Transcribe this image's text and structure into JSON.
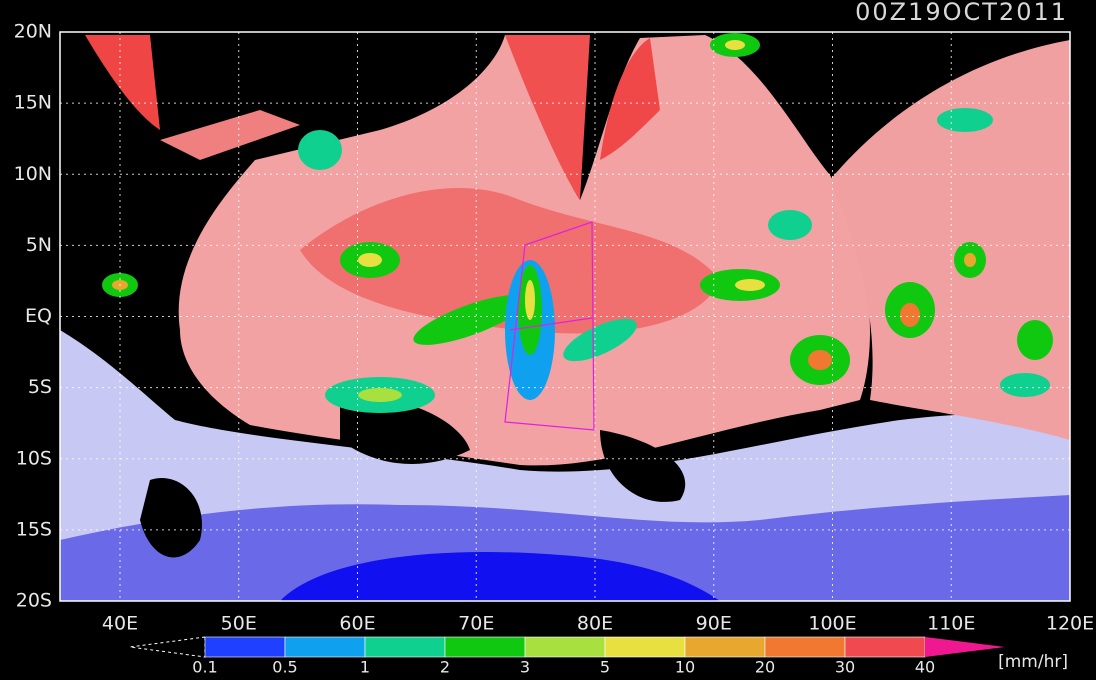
{
  "title": "00Z19OCT2011",
  "lat_labels": [
    "20N",
    "15N",
    "10N",
    "5N",
    "EQ",
    "5S",
    "10S",
    "15S",
    "20S"
  ],
  "lon_labels": [
    "40E",
    "50E",
    "60E",
    "70E",
    "80E",
    "90E",
    "100E",
    "110E",
    "120E"
  ],
  "colorbar": {
    "labels": [
      "0.1",
      "0.5",
      "1",
      "2",
      "3",
      "5",
      "10",
      "20",
      "30",
      "40"
    ],
    "colors": [
      "#2040ff",
      "#10a0f0",
      "#10d090",
      "#10c810",
      "#a8e040",
      "#e8e040",
      "#e8a830",
      "#f07830",
      "#f04a50",
      "#f01890"
    ],
    "units": "[mm/hr]"
  }
}
